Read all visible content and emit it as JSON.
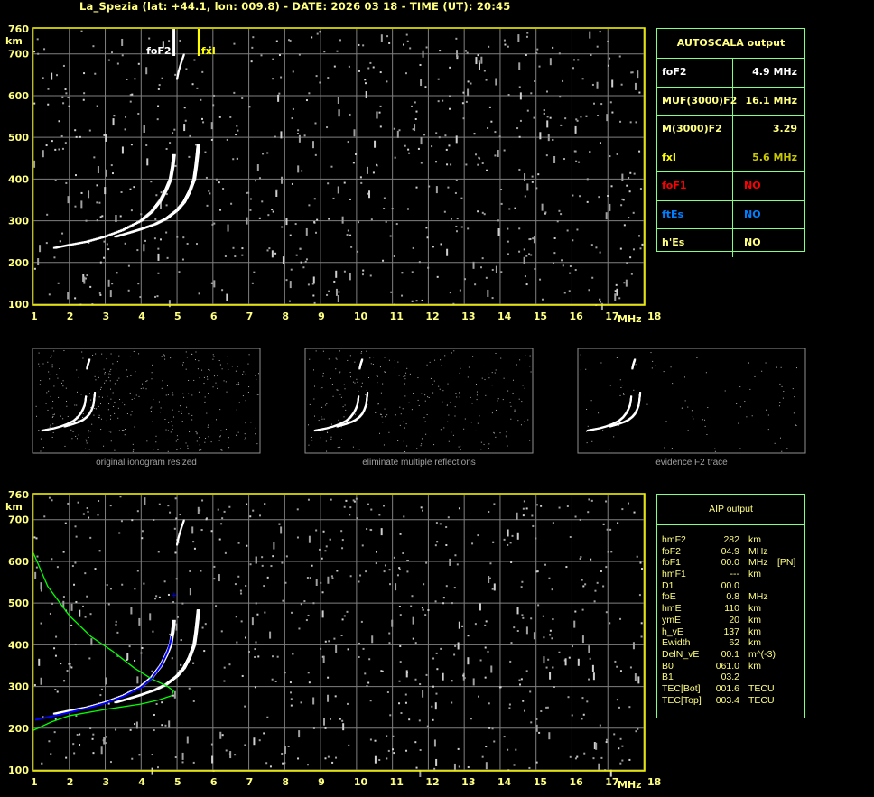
{
  "header": {
    "title": "La_Spezia (lat: +44.1, lon: 009.8) - DATE: 2026 03 18 - TIME (UT): 20:45"
  },
  "colors": {
    "axis": "#ffff80",
    "frame": "#ffff00",
    "grid": "#808080",
    "trace": "#ffffff",
    "noise": "#a0a0a0",
    "profile": "#00ff00",
    "fit": "#0000ff",
    "table_border": "#80ff80",
    "foF1": "#ff0000",
    "ftEs": "#0080ff",
    "fxI": "#c8c800"
  },
  "autoscala": {
    "title": "AUTOSCALA output",
    "rows": [
      {
        "key": "foF2",
        "value": "4.9 MHz",
        "kcolor": "#ffffff",
        "vcolor": "#ffffff"
      },
      {
        "key": "MUF(3000)F2",
        "value": "16.1 MHz",
        "kcolor": "#ffff80",
        "vcolor": "#ffff80"
      },
      {
        "key": "M(3000)F2",
        "value": "3.29",
        "kcolor": "#ffff80",
        "vcolor": "#ffff80"
      },
      {
        "key": "fxI",
        "value": "5.6 MHz",
        "kcolor": "#ffff00",
        "vcolor": "#c8c800"
      },
      {
        "key": "foF1",
        "value": "NO",
        "kcolor": "#ff0000",
        "vcolor": "#ff0000"
      },
      {
        "key": "ftEs",
        "value": "NO",
        "kcolor": "#0080ff",
        "vcolor": "#0080ff"
      },
      {
        "key": "h'Es",
        "value": "NO",
        "kcolor": "#ffff80",
        "vcolor": "#ffff80"
      }
    ]
  },
  "aip": {
    "title": "AIP output",
    "rows": [
      [
        "hmF2",
        "282",
        "km",
        ""
      ],
      [
        "foF2",
        "04.9",
        "MHz",
        ""
      ],
      [
        "foF1",
        "00.0",
        "MHz",
        "[PN]"
      ],
      [
        "hmF1",
        "---",
        "km",
        ""
      ],
      [
        "D1",
        "00.0",
        "",
        ""
      ],
      [
        "foE",
        "0.8",
        "MHz",
        ""
      ],
      [
        "hmE",
        "110",
        "km",
        ""
      ],
      [
        "ymE",
        "20",
        "km",
        ""
      ],
      [
        "h_vE",
        "137",
        "km",
        ""
      ],
      [
        "Ewidth",
        "62",
        "km",
        ""
      ],
      [
        "DelN_vE",
        "00.1",
        "m^(-3)",
        ""
      ],
      [
        "B0",
        "061.0",
        "km",
        ""
      ],
      [
        "B1",
        "03.2",
        "",
        ""
      ],
      [
        "TEC[Bot]",
        "001.6",
        "TECU",
        ""
      ],
      [
        "TEC[Top]",
        "003.4",
        "TECU",
        ""
      ]
    ]
  },
  "thumbnails": {
    "captions": [
      "original ionogram resized",
      "eliminate multiple reflections",
      "evidence F2 trace"
    ]
  },
  "chart_data": [
    {
      "type": "scatter",
      "title": "",
      "xlabel": "MHz",
      "ylabel": "km",
      "xlim": [
        1,
        18
      ],
      "ylim": [
        100,
        760
      ],
      "xticks": [
        1,
        2,
        3,
        4,
        5,
        6,
        7,
        8,
        9,
        10,
        11,
        12,
        13,
        14,
        15,
        16,
        17,
        18
      ],
      "yticks": [
        760,
        700,
        600,
        500,
        400,
        300,
        200,
        100
      ],
      "grid": true,
      "markers": [
        {
          "label": "foF2",
          "freq": 4.9,
          "color": "#ffffff"
        },
        {
          "label": "fxI",
          "freq": 5.6,
          "color": "#ffff00"
        }
      ],
      "series": [
        {
          "points": [
            [
              1.6,
              235
            ],
            [
              2.0,
              242
            ],
            [
              2.5,
              250
            ],
            [
              3.0,
              262
            ],
            [
              3.5,
              278
            ],
            [
              4.0,
              300
            ],
            [
              4.3,
              322
            ],
            [
              4.55,
              350
            ],
            [
              4.7,
              375
            ],
            [
              4.82,
              400
            ],
            [
              4.88,
              430
            ],
            [
              4.92,
              460
            ]
          ]
        },
        {
          "points": [
            [
              3.3,
              262
            ],
            [
              3.7,
              272
            ],
            [
              4.0,
              280
            ],
            [
              4.4,
              292
            ],
            [
              4.7,
              305
            ],
            [
              5.0,
              325
            ],
            [
              5.2,
              345
            ],
            [
              5.35,
              370
            ],
            [
              5.48,
              400
            ],
            [
              5.53,
              430
            ],
            [
              5.57,
              460
            ],
            [
              5.6,
              485
            ]
          ]
        },
        {
          "points": [
            [
              5.0,
              640
            ],
            [
              5.05,
              660
            ],
            [
              5.12,
              680
            ],
            [
              5.2,
              700
            ]
          ]
        }
      ]
    },
    {
      "type": "scatter",
      "title": "",
      "xlabel": "MHz",
      "ylabel": "km",
      "xlim": [
        1,
        18
      ],
      "ylim": [
        100,
        760
      ],
      "xticks": [
        1,
        2,
        3,
        4,
        5,
        6,
        7,
        8,
        9,
        10,
        11,
        12,
        13,
        14,
        15,
        16,
        17,
        18
      ],
      "yticks": [
        760,
        700,
        600,
        500,
        400,
        300,
        200,
        100
      ],
      "grid": true,
      "series": [
        {
          "name": "",
          "points": [
            [
              1.6,
              235
            ],
            [
              2.0,
              242
            ],
            [
              2.5,
              250
            ],
            [
              3.0,
              262
            ],
            [
              3.5,
              278
            ],
            [
              4.0,
              300
            ],
            [
              4.3,
              322
            ],
            [
              4.55,
              350
            ],
            [
              4.7,
              375
            ],
            [
              4.82,
              400
            ],
            [
              4.88,
              430
            ],
            [
              4.92,
              460
            ]
          ]
        },
        {
          "points": [
            [
              3.3,
              262
            ],
            [
              3.7,
              272
            ],
            [
              4.0,
              280
            ],
            [
              4.4,
              292
            ],
            [
              4.7,
              305
            ],
            [
              5.0,
              325
            ],
            [
              5.2,
              345
            ],
            [
              5.35,
              370
            ],
            [
              5.48,
              400
            ],
            [
              5.53,
              430
            ],
            [
              5.57,
              460
            ],
            [
              5.6,
              485
            ]
          ]
        },
        {
          "points": [
            [
              5.0,
              640
            ],
            [
              5.05,
              660
            ],
            [
              5.12,
              680
            ],
            [
              5.2,
              700
            ]
          ]
        }
      ],
      "profile": [
        [
          1.0,
          620
        ],
        [
          1.4,
          540
        ],
        [
          2.0,
          470
        ],
        [
          2.6,
          420
        ],
        [
          3.2,
          385
        ],
        [
          3.8,
          345
        ],
        [
          4.3,
          318
        ],
        [
          4.7,
          302
        ],
        [
          4.9,
          290
        ],
        [
          4.85,
          278
        ],
        [
          4.5,
          268
        ],
        [
          4.0,
          258
        ],
        [
          3.0,
          245
        ],
        [
          2.0,
          230
        ],
        [
          1.5,
          215
        ],
        [
          1.0,
          195
        ]
      ],
      "fit": [
        [
          1.05,
          220
        ],
        [
          1.5,
          228
        ],
        [
          2.0,
          238
        ],
        [
          2.5,
          248
        ],
        [
          3.0,
          260
        ],
        [
          3.5,
          276
        ],
        [
          4.0,
          298
        ],
        [
          4.3,
          320
        ],
        [
          4.55,
          350
        ],
        [
          4.72,
          380
        ],
        [
          4.8,
          400
        ],
        [
          4.85,
          420
        ],
        [
          4.9,
          520
        ]
      ]
    }
  ]
}
